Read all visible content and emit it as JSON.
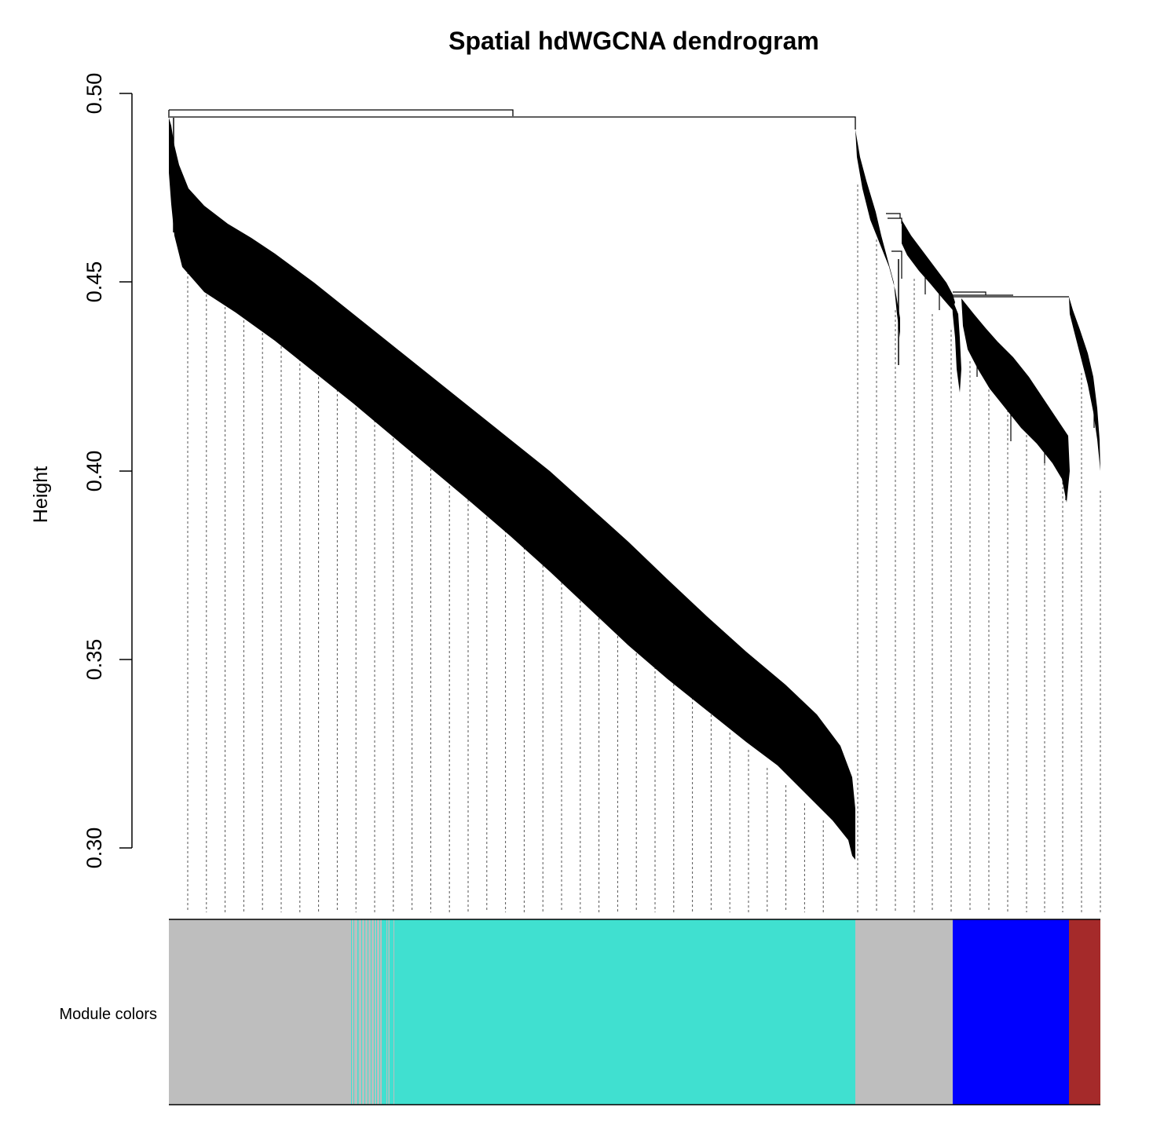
{
  "chart_data": {
    "type": "dendrogram",
    "title": "Spatial hdWGCNA dendrogram",
    "xlabel": "",
    "ylabel": "Height",
    "ylim": [
      0.3,
      0.5
    ],
    "yticks": [
      "0.30",
      "0.35",
      "0.40",
      "0.45",
      "0.50"
    ],
    "ytick_values": [
      0.3,
      0.35,
      0.4,
      0.45,
      0.5
    ],
    "grid": false,
    "legend": null,
    "color_row_label": "Module colors",
    "top_merge_heights": [
      0.495,
      0.494
    ],
    "clusters": [
      {
        "name": "main-left-branch",
        "x_start_frac": 0.0,
        "x_end_frac": 0.737,
        "top_height": 0.494,
        "min_height": 0.296
      },
      {
        "name": "right-branch-1",
        "x_start_frac": 0.737,
        "x_end_frac": 0.835,
        "top_height": 0.494,
        "min_height": 0.438
      },
      {
        "name": "right-branch-2",
        "x_start_frac": 0.835,
        "x_end_frac": 0.964,
        "top_height": 0.447,
        "min_height": 0.392
      },
      {
        "name": "right-branch-3",
        "x_start_frac": 0.964,
        "x_end_frac": 1.0,
        "top_height": 0.446,
        "min_height": 0.4
      }
    ],
    "module_colors": [
      {
        "module": "grey",
        "color": "#BEBEBE",
        "x_start_frac": 0.0,
        "x_end_frac": 0.194
      },
      {
        "module": "grey/turquoise mixed",
        "color": "#BEBEBE",
        "x_start_frac": 0.194,
        "x_end_frac": 0.247
      },
      {
        "module": "turquoise",
        "color": "#40E0D0",
        "x_start_frac": 0.247,
        "x_end_frac": 0.737
      },
      {
        "module": "grey",
        "color": "#BEBEBE",
        "x_start_frac": 0.737,
        "x_end_frac": 0.842
      },
      {
        "module": "blue",
        "color": "#0000FF",
        "x_start_frac": 0.842,
        "x_end_frac": 0.966
      },
      {
        "module": "brown",
        "color": "#A52A2A",
        "x_start_frac": 0.966,
        "x_end_frac": 1.0
      }
    ]
  },
  "labels": {
    "title": "Spatial hdWGCNA dendrogram",
    "ylabel": "Height",
    "color_row_label": "Module colors",
    "ticks": [
      "0.50",
      "0.45",
      "0.40",
      "0.35",
      "0.30"
    ]
  },
  "colors": {
    "grey": "#BEBEBE",
    "turquoise": "#40E0D0",
    "blue": "#0000FF",
    "brown": "#A52A2A",
    "ink": "#000000"
  }
}
